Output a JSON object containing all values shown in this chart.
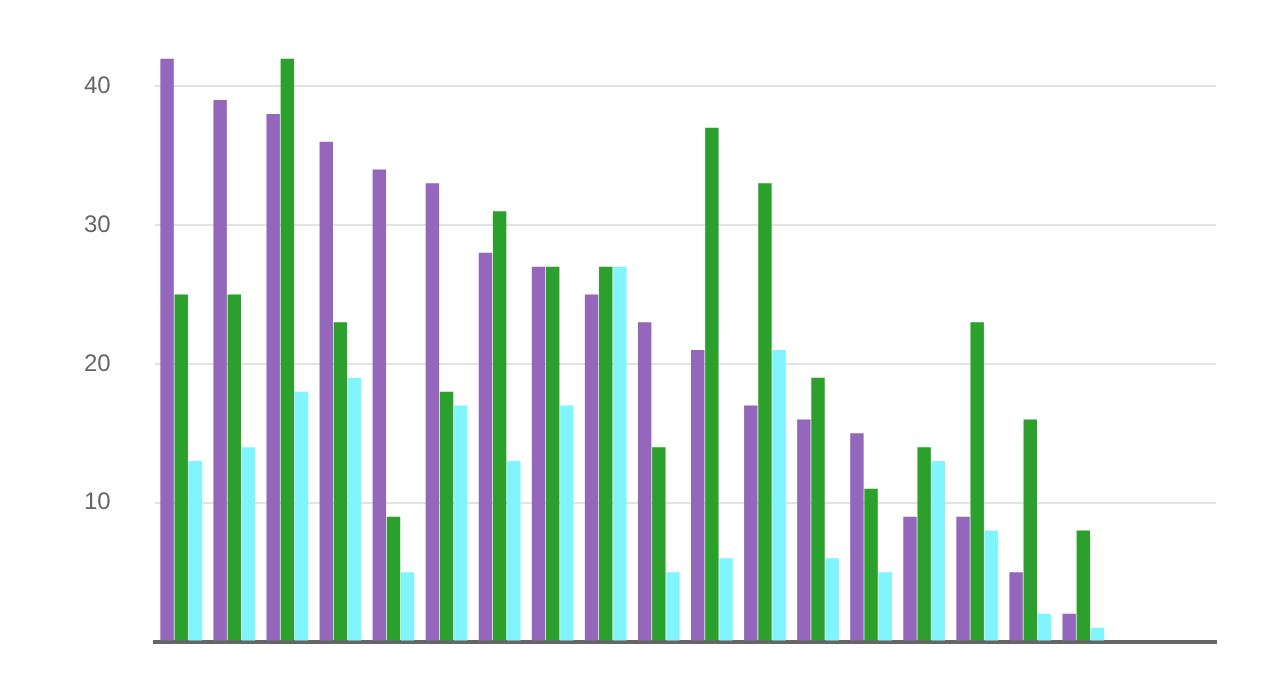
{
  "chart_data": {
    "type": "bar",
    "categories": [
      null,
      null,
      null,
      null,
      null,
      null,
      null,
      null,
      null,
      null,
      null,
      null,
      null,
      null,
      null,
      null,
      null,
      null,
      null,
      null
    ],
    "series": [
      {
        "color": "#9467bd",
        "values": [
          42,
          39,
          38,
          36,
          34,
          33,
          28,
          27,
          25,
          23,
          21,
          17,
          16,
          15,
          9,
          9,
          5,
          2,
          null,
          null
        ]
      },
      {
        "color": "#2ca02c",
        "values": [
          25,
          25,
          42,
          23,
          9,
          18,
          31,
          27,
          27,
          14,
          37,
          33,
          19,
          11,
          14,
          23,
          16,
          8,
          null,
          null
        ]
      },
      {
        "color": "#80f5ff",
        "values": [
          13,
          14,
          18,
          19,
          5,
          17,
          13,
          17,
          27,
          5,
          6,
          21,
          6,
          5,
          13,
          8,
          2,
          1,
          null,
          null
        ]
      }
    ],
    "ylim": [
      0,
      42
    ],
    "yticks": [
      {
        "value": 0,
        "label": null
      },
      10,
      20,
      30,
      40
    ],
    "grid": "y",
    "legend": false
  }
}
